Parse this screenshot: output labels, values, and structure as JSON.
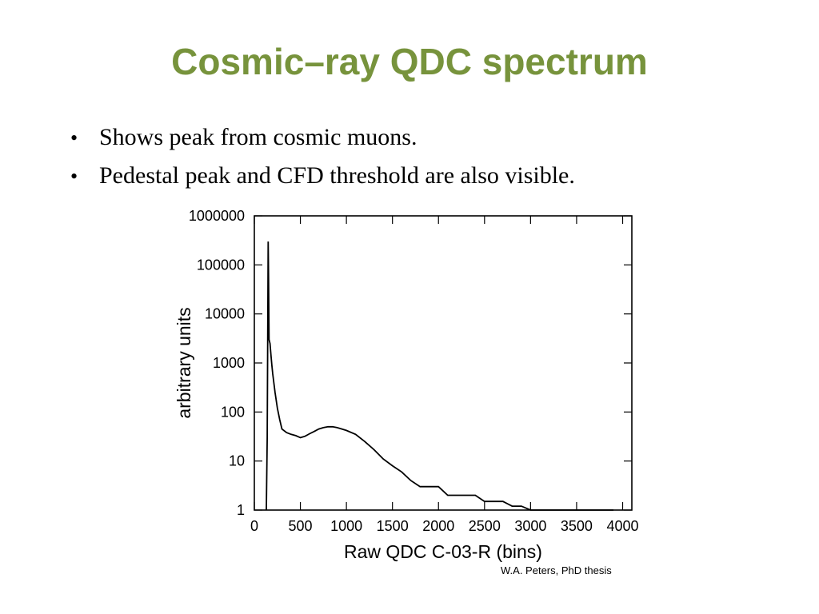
{
  "slide": {
    "title": "Cosmic–ray QDC spectrum",
    "bullets": [
      "Shows peak from cosmic muons.",
      "Pedestal peak and CFD threshold are also visible."
    ],
    "credit": "W.A. Peters, PhD thesis",
    "title_color": "#77933c"
  },
  "chart_data": {
    "type": "line",
    "xlabel": "Raw QDC C-03-R (bins)",
    "ylabel": "arbitrary units",
    "xlim": [
      0,
      4100
    ],
    "ylim": [
      1,
      1000000
    ],
    "yscale": "log",
    "x_ticks": [
      0,
      500,
      1000,
      1500,
      2000,
      2500,
      3000,
      3500,
      4000
    ],
    "x_tick_labels": [
      "0",
      "500",
      "1000",
      "1500",
      "2000",
      "2500",
      "3000",
      "3500",
      "4000"
    ],
    "y_ticks": [
      1,
      10,
      100,
      1000,
      10000,
      100000,
      1000000
    ],
    "y_tick_labels": [
      "1",
      "10",
      "100",
      "1000",
      "10000",
      "100000",
      "1000000"
    ],
    "grid": false,
    "series": [
      {
        "x": [
          130,
          140,
          150,
          155,
          160,
          170,
          180,
          190,
          200,
          225,
          250,
          275,
          300,
          350,
          400,
          450,
          500,
          550,
          600,
          650,
          700,
          750,
          800,
          850,
          900,
          950,
          1000,
          1100,
          1200,
          1300,
          1400,
          1500,
          1600,
          1700,
          1800,
          1900,
          2000,
          2100,
          2200,
          2300,
          2400,
          2500,
          2600,
          2700,
          2800,
          2900,
          3000,
          3100,
          3400,
          3600,
          3700,
          3900
        ],
        "y": [
          1,
          30,
          300000,
          50000,
          3000,
          2500,
          1500,
          900,
          600,
          250,
          120,
          70,
          45,
          38,
          35,
          33,
          30,
          32,
          36,
          40,
          45,
          48,
          50,
          50,
          48,
          45,
          42,
          35,
          25,
          17,
          11,
          8,
          6,
          4,
          3,
          3,
          3,
          2,
          2,
          2,
          2,
          1.5,
          1.5,
          1.5,
          1.2,
          1.2,
          1,
          1,
          1,
          1,
          1,
          1
        ]
      }
    ]
  }
}
